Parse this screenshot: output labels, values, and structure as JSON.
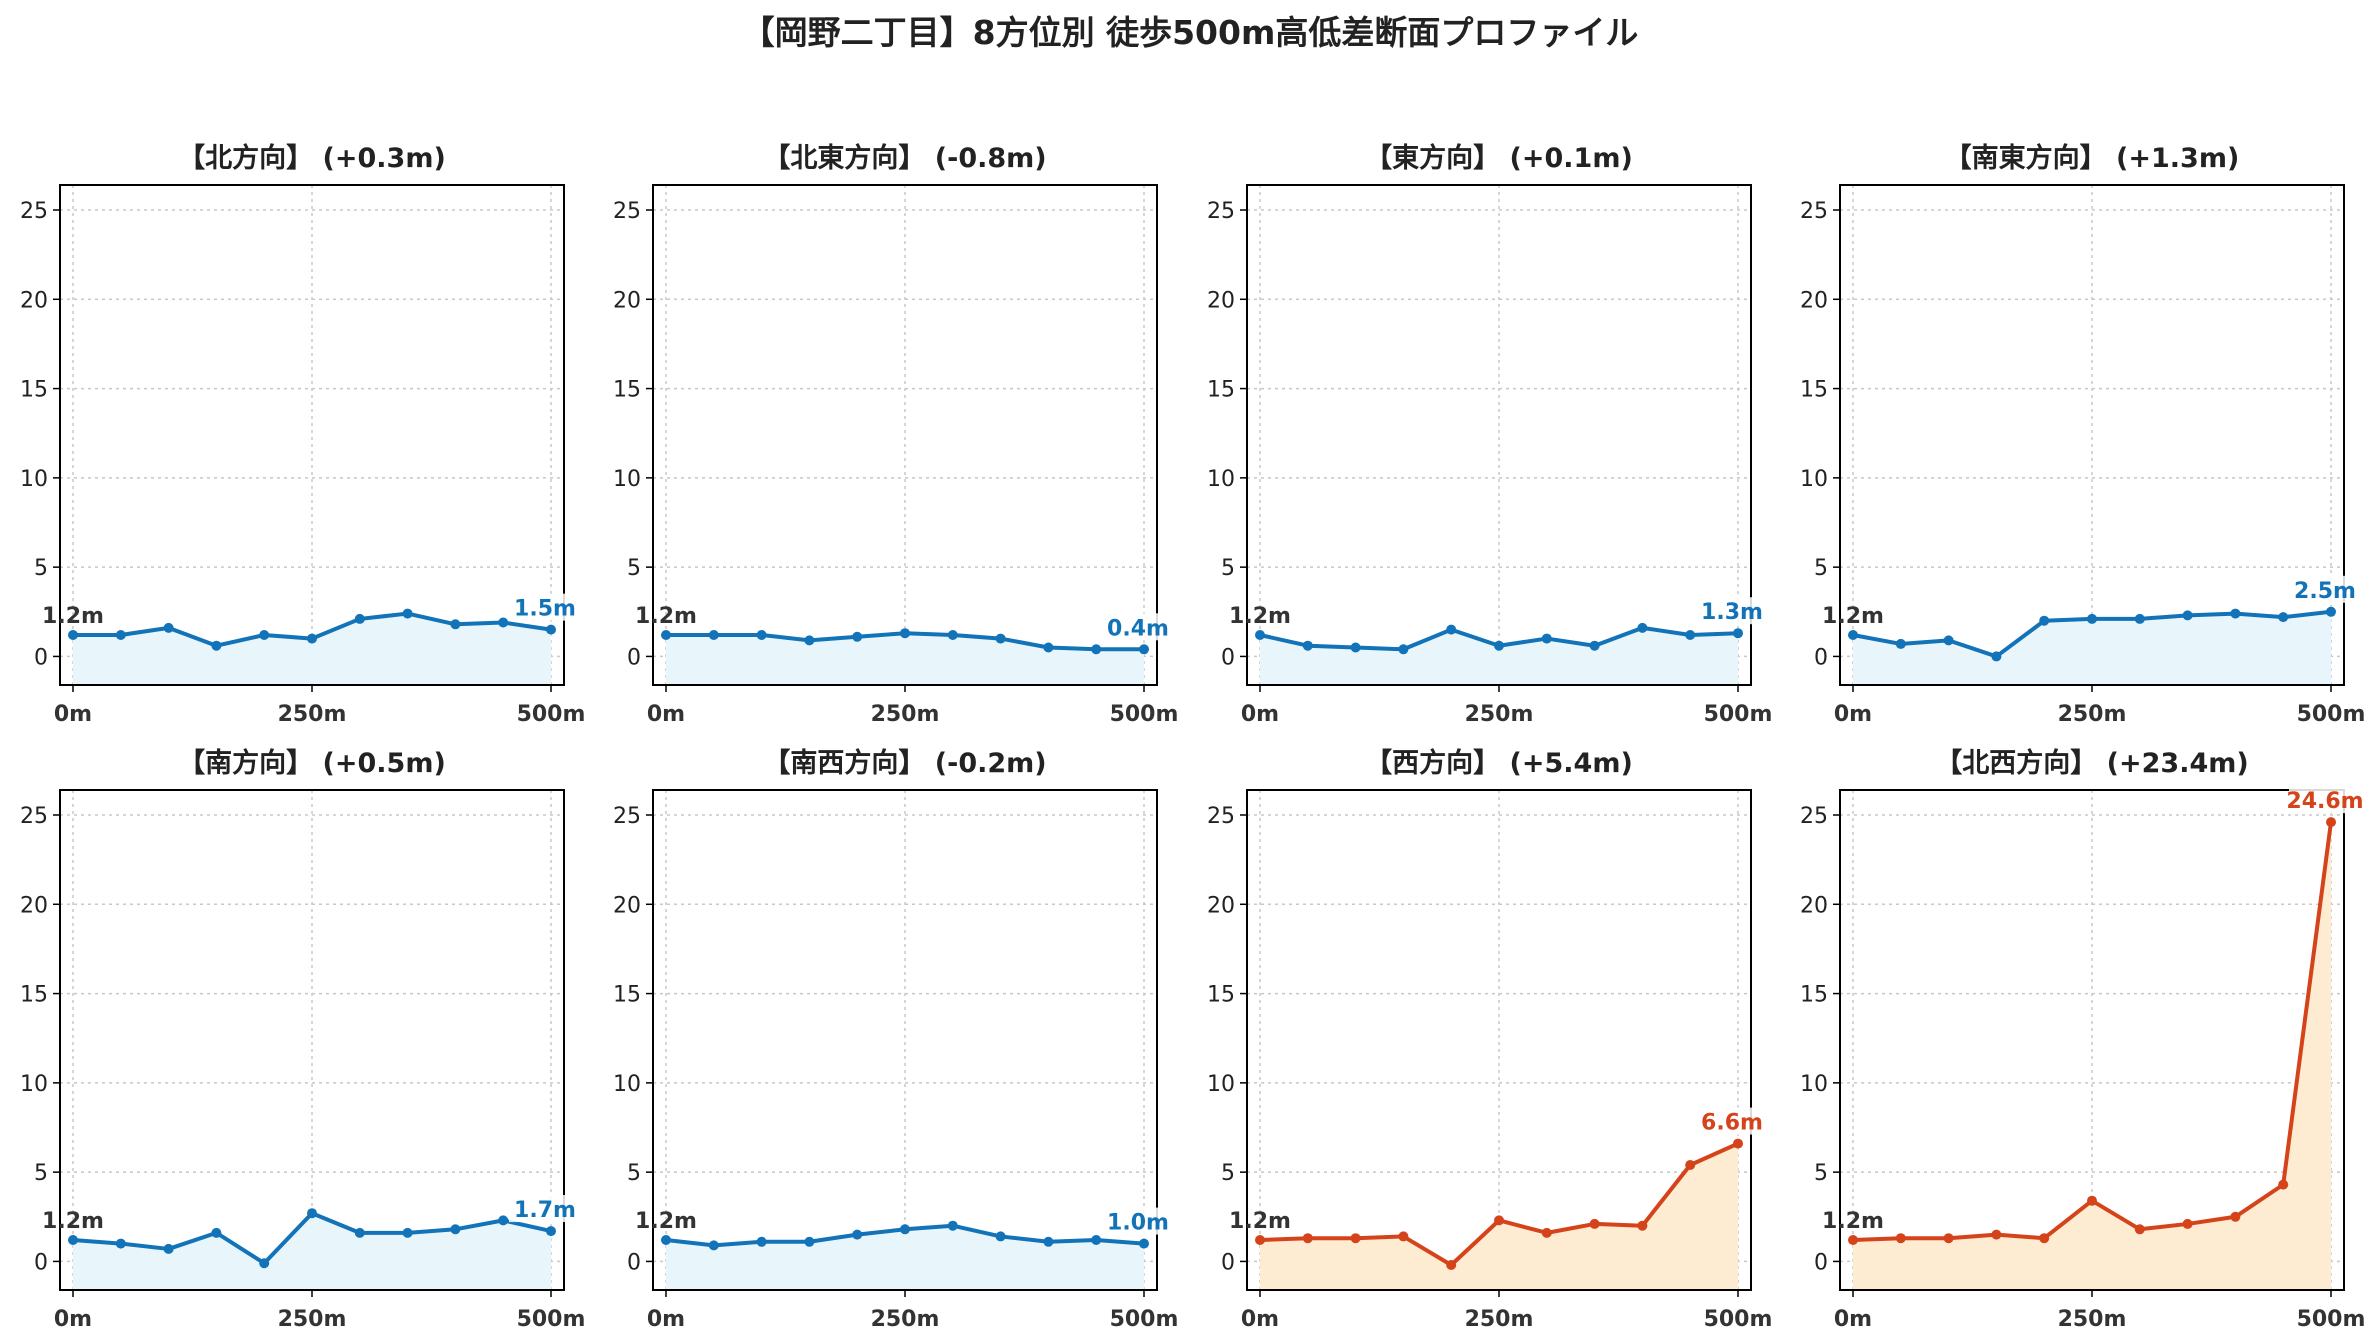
{
  "chart_data": {
    "type": "line",
    "title": "【岡野二丁目】8方位別 徒歩500m高低差断面プロファイル",
    "x": [
      0,
      50,
      100,
      150,
      200,
      250,
      300,
      350,
      400,
      450,
      500
    ],
    "x_tick_labels": [
      "0m",
      "250m",
      "500m"
    ],
    "x_ticks": [
      0,
      250,
      500
    ],
    "ylim": [
      -1.6,
      26.4
    ],
    "y_ticks": [
      0,
      5,
      10,
      15,
      20,
      25
    ],
    "grid": true,
    "colors": {
      "flat_line": "#1273b8",
      "flat_fill": "#e8f6fb",
      "steep_line": "#d5431a",
      "steep_fill": "#fdebd2"
    },
    "panels": [
      {
        "title": "【北方向】 (+0.3m)",
        "highlight": false,
        "start_label": "1.2m",
        "end_label": "1.5m",
        "values": [
          1.2,
          1.2,
          1.6,
          0.6,
          1.2,
          1.0,
          2.1,
          2.4,
          1.8,
          1.9,
          1.5
        ]
      },
      {
        "title": "【北東方向】 (-0.8m)",
        "highlight": false,
        "start_label": "1.2m",
        "end_label": "0.4m",
        "values": [
          1.2,
          1.2,
          1.2,
          0.9,
          1.1,
          1.3,
          1.2,
          1.0,
          0.5,
          0.4,
          0.4
        ]
      },
      {
        "title": "【東方向】 (+0.1m)",
        "highlight": false,
        "start_label": "1.2m",
        "end_label": "1.3m",
        "values": [
          1.2,
          0.6,
          0.5,
          0.4,
          1.5,
          0.6,
          1.0,
          0.6,
          1.6,
          1.2,
          1.3
        ]
      },
      {
        "title": "【南東方向】 (+1.3m)",
        "highlight": false,
        "start_label": "1.2m",
        "end_label": "2.5m",
        "values": [
          1.2,
          0.7,
          0.9,
          0.0,
          2.0,
          2.1,
          2.1,
          2.3,
          2.4,
          2.2,
          2.5
        ]
      },
      {
        "title": "【南方向】 (+0.5m)",
        "highlight": false,
        "start_label": "1.2m",
        "end_label": "1.7m",
        "values": [
          1.2,
          1.0,
          0.7,
          1.6,
          -0.1,
          2.7,
          1.6,
          1.6,
          1.8,
          2.3,
          1.7
        ]
      },
      {
        "title": "【南西方向】 (-0.2m)",
        "highlight": false,
        "start_label": "1.2m",
        "end_label": "1.0m",
        "values": [
          1.2,
          0.9,
          1.1,
          1.1,
          1.5,
          1.8,
          2.0,
          1.4,
          1.1,
          1.2,
          1.0
        ]
      },
      {
        "title": "【西方向】 (+5.4m)",
        "highlight": true,
        "start_label": "1.2m",
        "end_label": "6.6m",
        "values": [
          1.2,
          1.3,
          1.3,
          1.4,
          -0.2,
          2.3,
          1.6,
          2.1,
          2.0,
          5.4,
          6.6
        ]
      },
      {
        "title": "【北西方向】 (+23.4m)",
        "highlight": true,
        "start_label": "1.2m",
        "end_label": "24.6m",
        "values": [
          1.2,
          1.3,
          1.3,
          1.5,
          1.3,
          3.4,
          1.8,
          2.1,
          2.5,
          4.3,
          24.6
        ]
      }
    ]
  }
}
